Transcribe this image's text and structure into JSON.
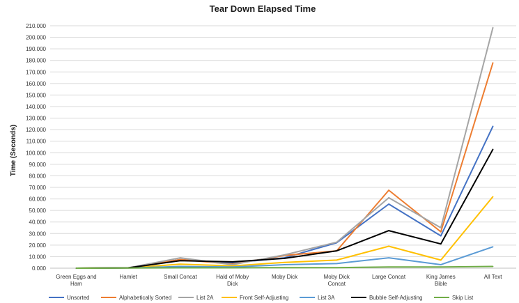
{
  "chart_data": {
    "type": "line",
    "title": "Tear Down Elapsed Time",
    "ylabel": "Time (Seconds)",
    "xlabel": "",
    "ylim": [
      0,
      210
    ],
    "ytick_step": 10,
    "yticks": [
      "0.000",
      "10.000",
      "20.000",
      "30.000",
      "40.000",
      "50.000",
      "60.000",
      "70.000",
      "80.000",
      "90.000",
      "100.000",
      "110.000",
      "120.000",
      "130.000",
      "140.000",
      "150.000",
      "160.000",
      "170.000",
      "180.000",
      "190.000",
      "200.000",
      "210.000"
    ],
    "grid": true,
    "legend_position": "bottom",
    "categories": [
      "Green Eggs and Ham",
      "Hamlet",
      "Small Concat",
      "Hald of Moby Dick",
      "Moby Dick",
      "Moby Dick Concat",
      "Large Concat",
      "King James Bible",
      "All Text"
    ],
    "series": [
      {
        "name": "Unsorted",
        "color": "#4472c4",
        "values": [
          0,
          0.3,
          7.5,
          4.5,
          9,
          22,
          55.5,
          28,
          123
        ]
      },
      {
        "name": "Alphabetically Sorted",
        "color": "#ed7d31",
        "values": [
          0,
          0.3,
          7.5,
          3.5,
          11,
          15,
          67.5,
          31.5,
          178
        ]
      },
      {
        "name": "List 2A",
        "color": "#a5a5a5",
        "values": [
          0,
          0.3,
          9,
          3,
          11.5,
          22.5,
          61,
          35,
          208.5
        ]
      },
      {
        "name": "Front Self-Adjusting",
        "color": "#ffc000",
        "values": [
          0,
          0.2,
          3.5,
          2,
          5,
          7,
          19,
          7,
          62
        ]
      },
      {
        "name": "List 3A",
        "color": "#5b9bd5",
        "values": [
          0,
          0.1,
          1.5,
          1,
          3,
          4,
          9,
          3,
          18.5
        ]
      },
      {
        "name": "Bubble Self-Adjusting",
        "color": "#000000",
        "values": [
          0,
          0.3,
          6.5,
          5.5,
          8.5,
          15,
          32.5,
          21,
          103
        ]
      },
      {
        "name": "Skip List",
        "color": "#70ad47",
        "values": [
          0,
          0.1,
          0.3,
          0.3,
          0.5,
          0.5,
          1,
          1,
          1.5
        ]
      }
    ]
  }
}
